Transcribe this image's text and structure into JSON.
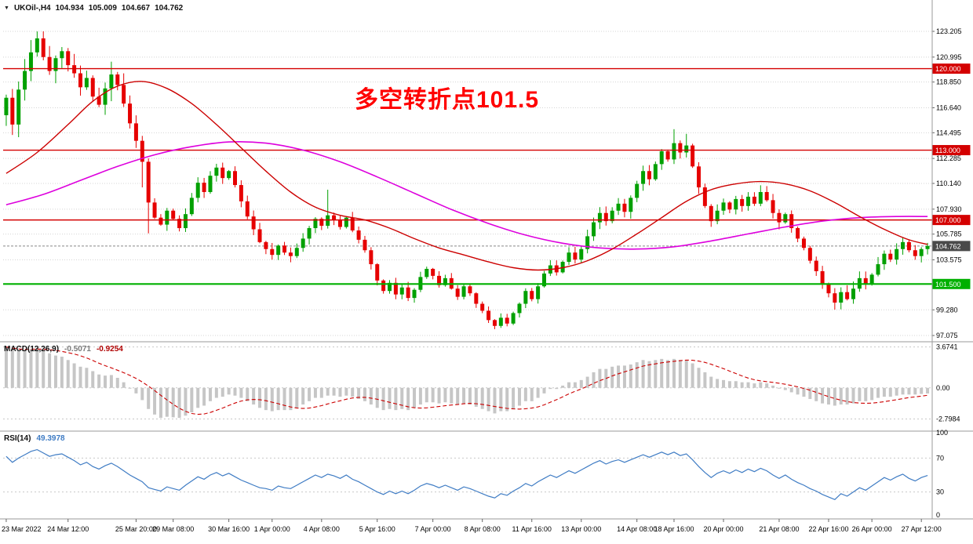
{
  "header": {
    "dropdown_icon": "▼",
    "symbol": "UKOil-,H4",
    "open": "104.934",
    "high": "105.009",
    "low": "104.667",
    "close": "104.762"
  },
  "annotation": {
    "text": "多空转折点101.5",
    "color": "#ff0000"
  },
  "panels": {
    "macd": {
      "label": "MACD(12,26,9)",
      "value_main": "-0.5071",
      "value_signal": "-0.9254"
    },
    "rsi": {
      "label": "RSI(14)",
      "value": "49.3978"
    }
  },
  "colors": {
    "background": "#ffffff",
    "candle_up": "#00a000",
    "candle_down": "#e60000",
    "grid": "#d4d4d4",
    "grid2": "#c8c8c8",
    "separator": "#9a9a9a",
    "axis_text": "#000000"
  },
  "chart_data": {
    "type": "candlestick",
    "symbol": "UKOil-",
    "timeframe": "H4",
    "main": {
      "ylim": [
        97.075,
        123.205
      ],
      "price_axis_labels": [
        {
          "v": 123.205,
          "t": "123.205"
        },
        {
          "v": 120.995,
          "t": "120.995"
        },
        {
          "v": 118.85,
          "t": "118.850"
        },
        {
          "v": 116.64,
          "t": "116.640"
        },
        {
          "v": 114.495,
          "t": "114.495"
        },
        {
          "v": 112.285,
          "t": "112.285"
        },
        {
          "v": 110.14,
          "t": "110.140"
        },
        {
          "v": 107.93,
          "t": "107.930"
        },
        {
          "v": 105.785,
          "t": "105.785"
        },
        {
          "v": 103.575,
          "t": "103.575"
        },
        {
          "v": 99.28,
          "t": "99.280"
        },
        {
          "v": 97.075,
          "t": "97.075"
        }
      ],
      "level_lines": [
        {
          "price": 120.0,
          "label": "120.000",
          "color": "#d40000",
          "width": 1.4
        },
        {
          "price": 113.0,
          "label": "113.000",
          "color": "#d40000",
          "width": 1.4
        },
        {
          "price": 107.0,
          "label": "107.000",
          "color": "#d40000",
          "width": 1.4
        },
        {
          "price": 101.5,
          "label": "101.500",
          "color": "#00b000",
          "width": 2.2
        }
      ],
      "current_price": {
        "price": 104.762,
        "label": "104.762",
        "color": "#4a4a4a"
      },
      "first_open": 116.0,
      "closes": [
        117.5,
        115.2,
        118.2,
        119.8,
        121.4,
        122.6,
        121.0,
        119.8,
        120.9,
        121.5,
        120.3,
        119.6,
        118.4,
        119.2,
        117.6,
        116.9,
        118.3,
        119.5,
        118.6,
        117.0,
        115.3,
        113.8,
        112.0,
        108.5,
        107.2,
        106.6,
        107.8,
        107.1,
        106.3,
        107.5,
        108.9,
        110.2,
        109.4,
        110.8,
        111.5,
        110.6,
        111.2,
        110.0,
        108.6,
        107.3,
        106.2,
        105.1,
        104.5,
        104.0,
        104.8,
        104.2,
        103.9,
        104.6,
        105.4,
        106.3,
        107.1,
        106.5,
        107.4,
        107.0,
        106.4,
        107.2,
        106.1,
        105.3,
        104.4,
        103.2,
        101.8,
        100.9,
        101.6,
        100.6,
        101.2,
        100.3,
        101.0,
        102.1,
        102.8,
        102.2,
        101.4,
        102.0,
        101.1,
        100.4,
        101.3,
        100.7,
        99.8,
        99.2,
        98.4,
        97.9,
        98.6,
        98.1,
        99.0,
        99.8,
        100.9,
        100.2,
        101.3,
        102.4,
        103.1,
        102.5,
        103.4,
        104.2,
        103.6,
        104.5,
        105.6,
        106.8,
        107.6,
        106.9,
        107.8,
        108.4,
        107.7,
        108.9,
        110.1,
        111.2,
        110.5,
        111.8,
        112.9,
        112.2,
        113.6,
        112.8,
        113.4,
        111.6,
        109.8,
        108.2,
        106.9,
        107.8,
        108.5,
        107.9,
        108.8,
        108.2,
        109.0,
        108.4,
        109.4,
        108.7,
        107.6,
        106.8,
        107.5,
        106.3,
        105.4,
        104.6,
        103.5,
        102.6,
        101.5,
        100.7,
        99.9,
        100.8,
        100.2,
        101.1,
        102.0,
        101.5,
        102.3,
        103.2,
        104.1,
        103.6,
        104.5,
        105.1,
        104.4,
        103.9,
        104.5,
        104.762
      ],
      "wick_overrides": {
        "5": {
          "h": 123.2
        },
        "17": {
          "h": 120.6
        },
        "22": {
          "l": 109.8
        },
        "23": {
          "l": 105.85
        },
        "52": {
          "h": 109.6
        },
        "79": {
          "l": 97.62
        },
        "108": {
          "h": 114.8
        },
        "110": {
          "h": 114.4
        },
        "134": {
          "l": 99.3
        }
      },
      "ma_fast": {
        "color": "#cc0000",
        "points": [
          [
            0,
            111.0
          ],
          [
            5,
            112.8
          ],
          [
            10,
            115.2
          ],
          [
            14,
            117.2
          ],
          [
            18,
            118.5
          ],
          [
            22,
            118.9
          ],
          [
            26,
            118.3
          ],
          [
            30,
            117.0
          ],
          [
            34,
            115.2
          ],
          [
            38,
            113.2
          ],
          [
            42,
            111.2
          ],
          [
            46,
            109.4
          ],
          [
            50,
            108.1
          ],
          [
            54,
            107.4
          ],
          [
            58,
            107.0
          ],
          [
            62,
            106.3
          ],
          [
            66,
            105.4
          ],
          [
            70,
            104.6
          ],
          [
            74,
            104.0
          ],
          [
            78,
            103.4
          ],
          [
            82,
            102.9
          ],
          [
            86,
            102.7
          ],
          [
            90,
            102.9
          ],
          [
            94,
            103.5
          ],
          [
            98,
            104.5
          ],
          [
            102,
            105.8
          ],
          [
            106,
            107.2
          ],
          [
            110,
            108.6
          ],
          [
            114,
            109.6
          ],
          [
            118,
            110.1
          ],
          [
            122,
            110.3
          ],
          [
            126,
            110.1
          ],
          [
            130,
            109.5
          ],
          [
            134,
            108.5
          ],
          [
            138,
            107.3
          ],
          [
            142,
            106.2
          ],
          [
            146,
            105.3
          ],
          [
            149,
            104.9
          ]
        ]
      },
      "ma_slow": {
        "color": "#dd00dd",
        "points": [
          [
            0,
            108.3
          ],
          [
            6,
            109.2
          ],
          [
            12,
            110.4
          ],
          [
            18,
            111.6
          ],
          [
            24,
            112.6
          ],
          [
            30,
            113.3
          ],
          [
            36,
            113.7
          ],
          [
            42,
            113.6
          ],
          [
            48,
            113.0
          ],
          [
            54,
            112.0
          ],
          [
            60,
            110.7
          ],
          [
            66,
            109.3
          ],
          [
            72,
            107.9
          ],
          [
            78,
            106.7
          ],
          [
            84,
            105.7
          ],
          [
            90,
            105.0
          ],
          [
            96,
            104.6
          ],
          [
            102,
            104.5
          ],
          [
            108,
            104.7
          ],
          [
            114,
            105.2
          ],
          [
            120,
            105.8
          ],
          [
            126,
            106.4
          ],
          [
            132,
            106.9
          ],
          [
            138,
            107.2
          ],
          [
            144,
            107.3
          ],
          [
            149,
            107.3
          ]
        ]
      }
    },
    "macd": {
      "ylim": [
        -3.75,
        4.0
      ],
      "hist_color": "#c6c6c6",
      "signal_color": "#cc0000",
      "axis_labels": [
        {
          "v": 3.6741,
          "t": "3.6741"
        },
        {
          "v": 0,
          "t": "0.00"
        },
        {
          "v": -2.7984,
          "t": "-2.7984"
        }
      ],
      "values": [
        3.67,
        3.5,
        3.3,
        3.35,
        3.5,
        3.6,
        3.4,
        3.1,
        2.9,
        2.8,
        2.5,
        2.2,
        1.9,
        1.8,
        1.5,
        1.2,
        1.1,
        1.15,
        0.9,
        0.5,
        0.0,
        -0.5,
        -1.1,
        -1.9,
        -2.4,
        -2.7,
        -2.6,
        -2.65,
        -2.7,
        -2.5,
        -2.2,
        -1.8,
        -1.6,
        -1.2,
        -0.9,
        -0.8,
        -0.6,
        -0.7,
        -0.9,
        -1.2,
        -1.5,
        -1.8,
        -2.0,
        -2.1,
        -2.0,
        -2.0,
        -2.0,
        -1.8,
        -1.5,
        -1.2,
        -0.9,
        -0.9,
        -0.7,
        -0.7,
        -0.8,
        -0.7,
        -0.8,
        -1.0,
        -1.2,
        -1.5,
        -1.8,
        -2.0,
        -1.9,
        -2.0,
        -1.9,
        -2.0,
        -1.8,
        -1.5,
        -1.3,
        -1.3,
        -1.4,
        -1.3,
        -1.4,
        -1.5,
        -1.4,
        -1.5,
        -1.7,
        -1.9,
        -2.1,
        -2.3,
        -2.1,
        -2.1,
        -1.9,
        -1.6,
        -1.2,
        -1.2,
        -0.9,
        -0.5,
        -0.1,
        -0.1,
        0.2,
        0.5,
        0.5,
        0.7,
        1.0,
        1.4,
        1.7,
        1.7,
        1.9,
        2.0,
        2.0,
        2.1,
        2.3,
        2.5,
        2.4,
        2.5,
        2.6,
        2.5,
        2.6,
        2.5,
        2.5,
        2.2,
        1.8,
        1.4,
        1.0,
        0.8,
        0.7,
        0.6,
        0.6,
        0.5,
        0.5,
        0.4,
        0.5,
        0.4,
        0.2,
        0.0,
        -0.2,
        -0.4,
        -0.6,
        -0.8,
        -1.0,
        -1.2,
        -1.4,
        -1.5,
        -1.6,
        -1.5,
        -1.5,
        -1.4,
        -1.2,
        -1.2,
        -1.1,
        -0.9,
        -0.8,
        -0.8,
        -0.7,
        -0.6,
        -0.6,
        -0.6,
        -0.55,
        -0.5071
      ]
    },
    "rsi": {
      "color": "#3f7cc4",
      "levels": [
        70,
        30
      ],
      "axis_labels": [
        {
          "v": 100,
          "t": "100"
        },
        {
          "v": 70,
          "t": "70"
        },
        {
          "v": 30,
          "t": "30"
        },
        {
          "v": 0,
          "t": "0"
        }
      ],
      "values": [
        72,
        65,
        70,
        74,
        78,
        80,
        76,
        72,
        74,
        75,
        71,
        67,
        62,
        65,
        60,
        57,
        61,
        64,
        60,
        55,
        50,
        46,
        42,
        35,
        33,
        31,
        36,
        34,
        32,
        38,
        43,
        48,
        45,
        50,
        53,
        49,
        52,
        48,
        44,
        41,
        38,
        35,
        34,
        32,
        37,
        35,
        34,
        38,
        42,
        46,
        50,
        47,
        51,
        49,
        46,
        50,
        45,
        42,
        38,
        34,
        30,
        27,
        31,
        28,
        31,
        28,
        32,
        37,
        40,
        38,
        35,
        38,
        35,
        32,
        36,
        34,
        31,
        28,
        25,
        23,
        28,
        26,
        31,
        35,
        40,
        37,
        42,
        46,
        50,
        47,
        51,
        55,
        52,
        56,
        60,
        64,
        67,
        63,
        66,
        68,
        65,
        68,
        71,
        74,
        71,
        74,
        77,
        74,
        77,
        73,
        75,
        68,
        60,
        53,
        47,
        52,
        55,
        52,
        56,
        53,
        57,
        54,
        58,
        55,
        50,
        46,
        50,
        45,
        41,
        38,
        34,
        31,
        27,
        24,
        21,
        28,
        25,
        30,
        35,
        32,
        37,
        42,
        47,
        44,
        48,
        51,
        46,
        43,
        47,
        49.4
      ]
    },
    "time_labels": [
      {
        "i": 0,
        "t": "23 Mar 2022"
      },
      {
        "i": 10,
        "t": "24 Mar 12:00"
      },
      {
        "i": 21,
        "t": "25 Mar 20:00"
      },
      {
        "i": 27,
        "t": "29 Mar 08:00"
      },
      {
        "i": 36,
        "t": "30 Mar 16:00"
      },
      {
        "i": 43,
        "t": "1 Apr 00:00"
      },
      {
        "i": 51,
        "t": "4 Apr 08:00"
      },
      {
        "i": 60,
        "t": "5 Apr 16:00"
      },
      {
        "i": 69,
        "t": "7 Apr 00:00"
      },
      {
        "i": 77,
        "t": "8 Apr 08:00"
      },
      {
        "i": 85,
        "t": "11 Apr 16:00"
      },
      {
        "i": 93,
        "t": "13 Apr 00:00"
      },
      {
        "i": 102,
        "t": "14 Apr 08:00"
      },
      {
        "i": 108,
        "t": "18 Apr 16:00"
      },
      {
        "i": 116,
        "t": "20 Apr 00:00"
      },
      {
        "i": 125,
        "t": "21 Apr 08:00"
      },
      {
        "i": 133,
        "t": "22 Apr 16:00"
      },
      {
        "i": 140,
        "t": "26 Apr 00:00"
      },
      {
        "i": 148,
        "t": "27 Apr 12:00"
      }
    ]
  }
}
